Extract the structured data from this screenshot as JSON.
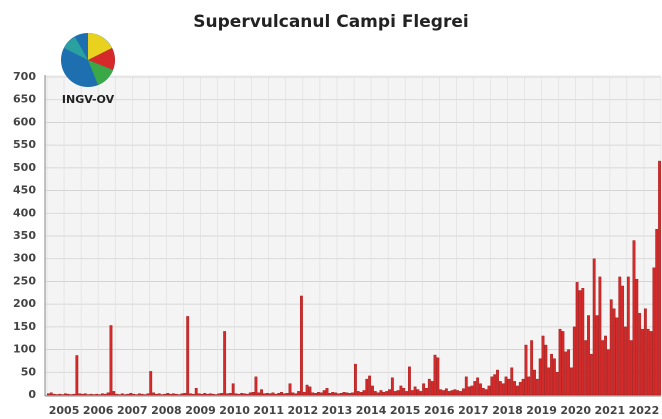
{
  "chart_data": {
    "type": "bar",
    "title": "Supervulcanul Campi Flegrei",
    "logo_text": "INGV-OV",
    "categories": [
      "2005",
      "2006",
      "2007",
      "2008",
      "2009",
      "2010",
      "2011",
      "2012",
      "2013",
      "2014",
      "2015",
      "2016",
      "2017",
      "2018",
      "2019",
      "2020",
      "2021",
      "2022"
    ],
    "values": [
      [
        3,
        5,
        2,
        1,
        2,
        1,
        3,
        2,
        1,
        2,
        87,
        3
      ],
      [
        2,
        3,
        1,
        2,
        1,
        2,
        1,
        3,
        2,
        5,
        153,
        8
      ],
      [
        2,
        1,
        3,
        1,
        2,
        4,
        2,
        1,
        3,
        2,
        1,
        3
      ],
      [
        52,
        5,
        2,
        3,
        1,
        2,
        4,
        2,
        3,
        2,
        1,
        3
      ],
      [
        4,
        173,
        3,
        2,
        15,
        3,
        2,
        4,
        2,
        3,
        2,
        1
      ],
      [
        3,
        4,
        140,
        3,
        4,
        25,
        3,
        2,
        4,
        3,
        2,
        5
      ],
      [
        6,
        40,
        5,
        12,
        3,
        4,
        3,
        5,
        2,
        4,
        6,
        3
      ],
      [
        4,
        25,
        5,
        3,
        8,
        218,
        6,
        22,
        18,
        5,
        4,
        6
      ],
      [
        5,
        10,
        15,
        4,
        6,
        5,
        3,
        4,
        6,
        5,
        4,
        5
      ],
      [
        68,
        8,
        6,
        10,
        35,
        42,
        20,
        8,
        5,
        10,
        6,
        8
      ],
      [
        12,
        38,
        8,
        10,
        20,
        15,
        8,
        62,
        10,
        18,
        12,
        8
      ],
      [
        25,
        15,
        35,
        30,
        88,
        82,
        12,
        10,
        14,
        8,
        10,
        12
      ],
      [
        10,
        8,
        14,
        40,
        18,
        20,
        30,
        38,
        25,
        15,
        12,
        20
      ],
      [
        40,
        45,
        55,
        30,
        25,
        40,
        35,
        60,
        30,
        20,
        28,
        35
      ],
      [
        110,
        40,
        120,
        55,
        35,
        80,
        130,
        110,
        60,
        90,
        80,
        50
      ],
      [
        145,
        140,
        95,
        100,
        60,
        150,
        248,
        230,
        235,
        120,
        175,
        90
      ],
      [
        300,
        175,
        260,
        120,
        130,
        100,
        210,
        190,
        170,
        260,
        240,
        150
      ],
      [
        260,
        120,
        340,
        255,
        180,
        145,
        190,
        145,
        140,
        280,
        365,
        515
      ]
    ],
    "color": "#d42a2a",
    "ylim": [
      0,
      700
    ],
    "yticks": [
      0,
      50,
      100,
      150,
      200,
      250,
      300,
      350,
      400,
      450,
      500,
      550,
      600,
      650,
      700
    ],
    "grid": true
  }
}
